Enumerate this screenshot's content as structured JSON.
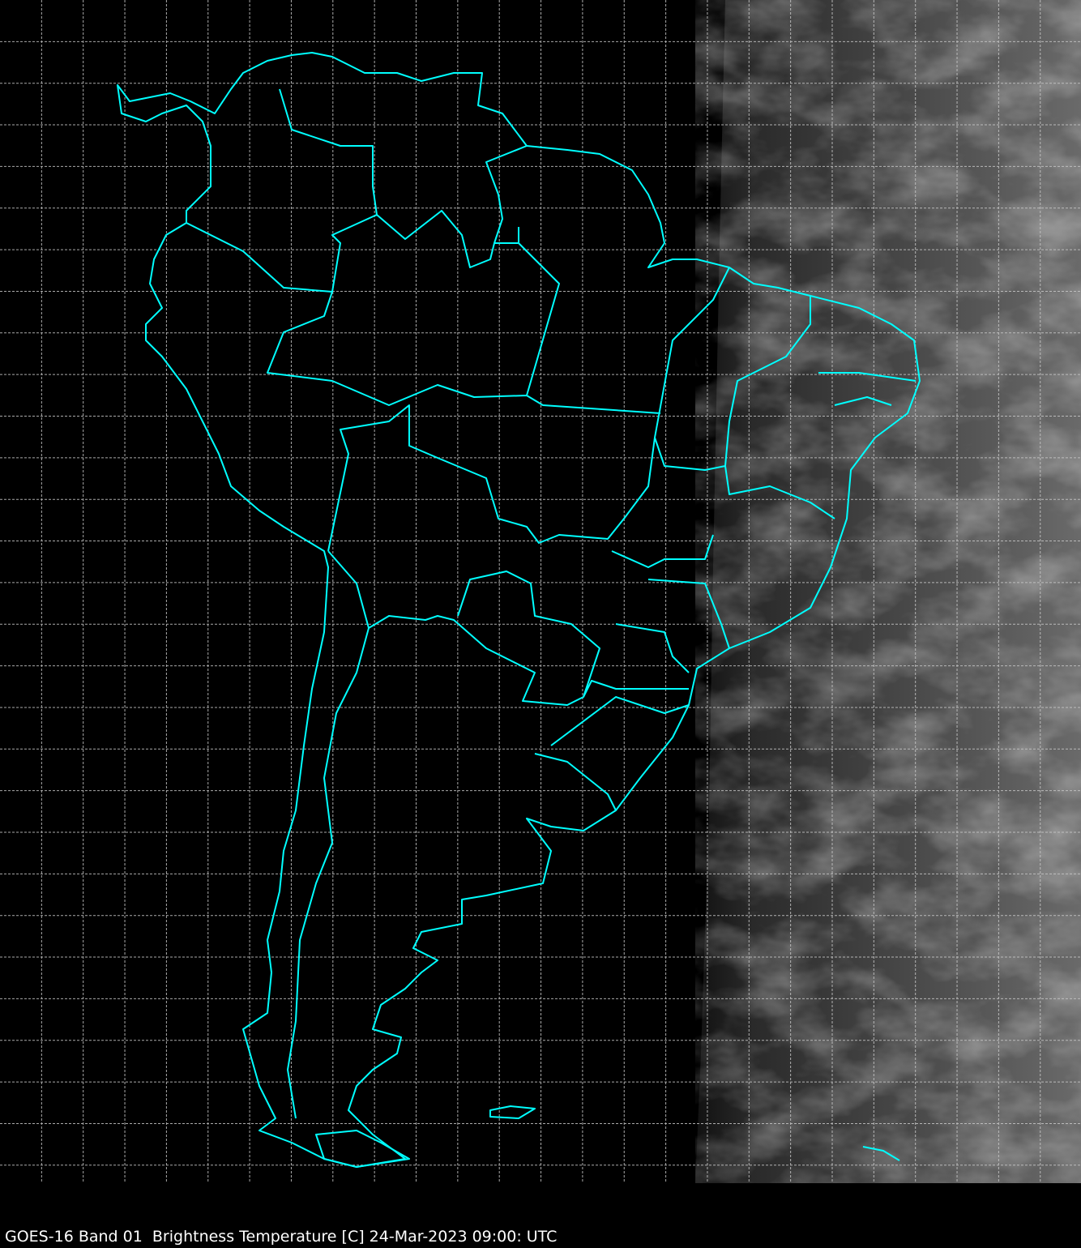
{
  "caption": "GOES-16 Band 01  Brightness Temperature [C] 24-Mar-2023 09:00: UTC",
  "map": {
    "region": "South America",
    "coastline_color": "#00FFFF",
    "grid_color": "#C8C8C8",
    "background_color": "#000000",
    "grid": true
  }
}
